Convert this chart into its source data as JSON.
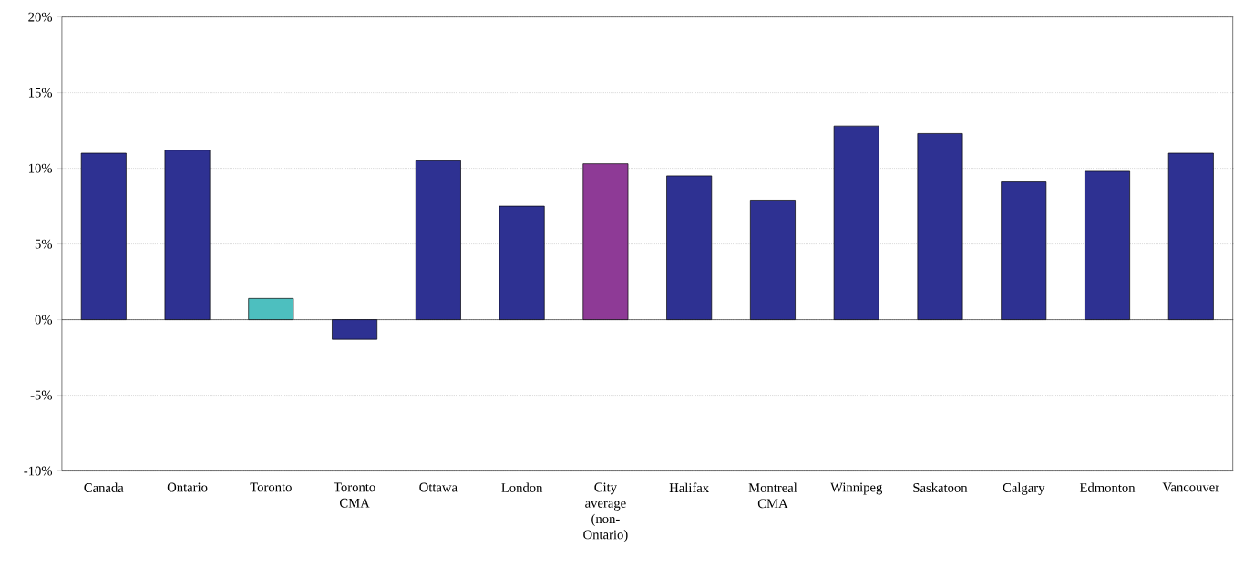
{
  "chart_data": {
    "type": "bar",
    "categories": [
      "Canada",
      "Ontario",
      "Toronto",
      "Toronto CMA",
      "Ottawa",
      "London",
      "City average (non-Ontario)",
      "Halifax",
      "Montreal CMA",
      "Winnipeg",
      "Saskatoon",
      "Calgary",
      "Edmonton",
      "Vancouver"
    ],
    "values": [
      11.0,
      11.2,
      1.4,
      -1.3,
      10.5,
      7.5,
      10.3,
      9.5,
      7.9,
      12.8,
      12.3,
      9.1,
      9.8,
      11.0
    ],
    "colors": [
      "#2e3192",
      "#2e3192",
      "#4dbfbf",
      "#2e3192",
      "#2e3192",
      "#2e3192",
      "#8e3a96",
      "#2e3192",
      "#2e3192",
      "#2e3192",
      "#2e3192",
      "#2e3192",
      "#2e3192",
      "#2e3192"
    ],
    "ylim": [
      -10,
      20
    ],
    "yticks": [
      {
        "value": -10,
        "label": "-10%"
      },
      {
        "value": -5,
        "label": "-5%"
      },
      {
        "value": 0,
        "label": "0%"
      },
      {
        "value": 5,
        "label": "5%"
      },
      {
        "value": 10,
        "label": "10%"
      },
      {
        "value": 15,
        "label": "15%"
      },
      {
        "value": 20,
        "label": "20%"
      }
    ],
    "grid": "y"
  }
}
